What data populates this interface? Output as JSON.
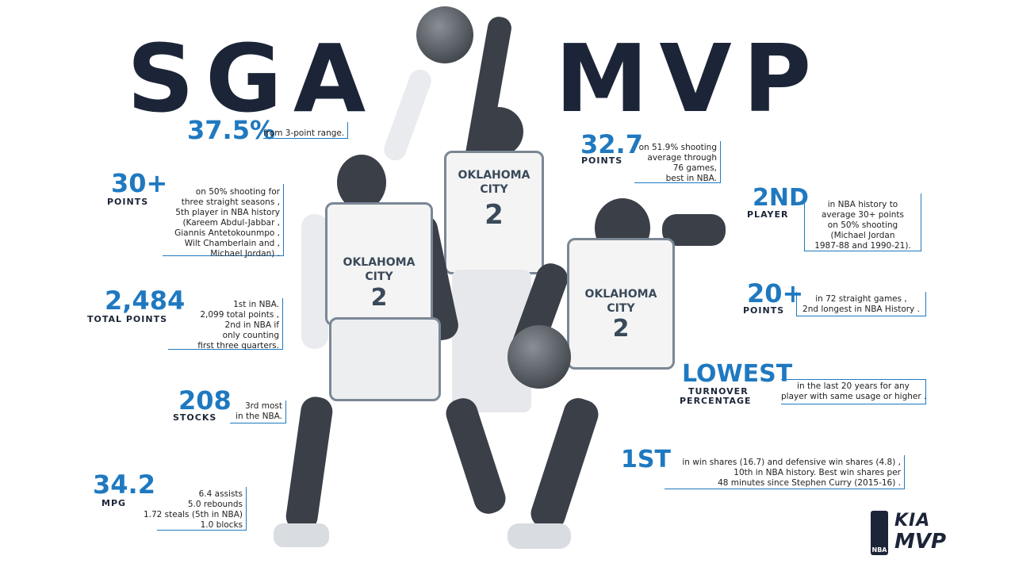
{
  "title": {
    "left": "SGA",
    "right": "MVP"
  },
  "stats": {
    "three_pt": {
      "value": "37.5%",
      "label": "",
      "desc": "from 3-point range."
    },
    "points30": {
      "value": "30+",
      "label": "POINTS",
      "desc": [
        "on 50% shooting for",
        "three straight seasons ,",
        "5th player in NBA history",
        "(Kareem Abdul-Jabbar ,",
        "Giannis Antetokounmpo ,",
        "Wilt Chamberlain and ,",
        "Michael Jordan) ."
      ]
    },
    "total": {
      "value": "2,484",
      "label": "TOTAL POINTS",
      "desc": [
        "1st in NBA.",
        "2,099 total points ,",
        "2nd in NBA if",
        "only counting",
        "first three quarters."
      ]
    },
    "stocks": {
      "value": "208",
      "label": "STOCKS",
      "desc": [
        "3rd most",
        "in the NBA."
      ]
    },
    "mpg": {
      "value": "34.2",
      "label": "MPG",
      "desc": [
        "6.4 assists",
        "5.0 rebounds",
        "1.72 steals (5th in NBA)",
        "1.0 blocks"
      ]
    },
    "ppg": {
      "value": "32.7",
      "label": "POINTS",
      "desc": [
        "on 51.9% shooting",
        "average through",
        "76 games,",
        "best in NBA."
      ]
    },
    "second": {
      "value": "2ND",
      "label": "PLAYER",
      "desc": [
        "in NBA history to",
        "average 30+ points",
        "on 50% shooting",
        "(Michael Jordan",
        "1987-88 and 1990-21)."
      ]
    },
    "points20": {
      "value": "20+",
      "label": "POINTS",
      "desc": [
        "in 72 straight games ,",
        "2nd longest in NBA History ."
      ]
    },
    "lowest": {
      "value": "LOWEST",
      "label1": "TURNOVER",
      "label2": "PERCENTAGE",
      "desc": [
        "in the last 20 years for any",
        "player with same usage or higher ."
      ]
    },
    "first": {
      "value": "1ST",
      "desc": [
        "in win shares (16.7) and defensive win shares (4.8) ,",
        "10th in NBA history. Best win shares per",
        "48 minutes since Stephen Curry (2015-16) ."
      ]
    }
  },
  "jersey": {
    "team_line1": "OKLAHOMA",
    "team_line2": "CITY",
    "number": "2"
  },
  "logo": {
    "nba": "NBA",
    "kia": "KIA",
    "mvp": "MVP"
  },
  "colors": {
    "accent": "#1f79c0",
    "navy": "#1c2538"
  }
}
